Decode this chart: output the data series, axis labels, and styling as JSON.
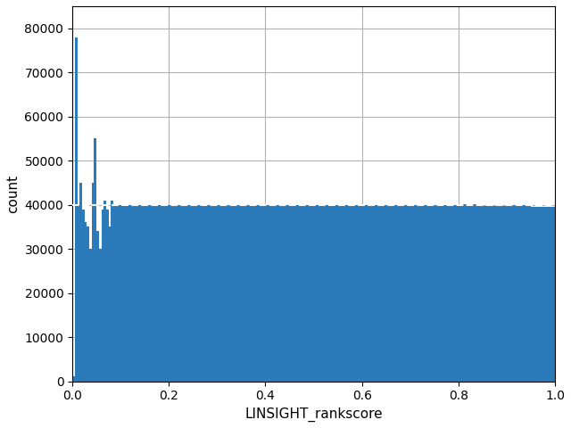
{
  "xlabel": "LINSIGHT_rankscore",
  "ylabel": "count",
  "xlim": [
    0.0,
    1.0
  ],
  "ylim": [
    0,
    85000
  ],
  "bar_color": "#2b7bba",
  "hline_color": "white",
  "hline_y": 40000,
  "hline_style": "--",
  "grid_color": "#b0b0b0",
  "figure_facecolor": "#ffffff",
  "axes_facecolor": "#ffffff",
  "figsize": [
    6.4,
    4.8
  ],
  "dpi": 100,
  "bin_edges": [
    0.0,
    0.005,
    0.01,
    0.015,
    0.02,
    0.025,
    0.03,
    0.035,
    0.04,
    0.045,
    0.05,
    0.055,
    0.06,
    0.065,
    0.07,
    0.075,
    0.08,
    0.085,
    0.09,
    0.095,
    0.1,
    0.15,
    0.2,
    0.25,
    0.3,
    0.35,
    0.4,
    0.45,
    0.5,
    0.55,
    0.6,
    0.65,
    0.7,
    0.75,
    0.8,
    0.85,
    0.9,
    0.95,
    1.0
  ],
  "bin_counts": [
    1200,
    78000,
    40000,
    45000,
    39000,
    36000,
    35000,
    30000,
    45000,
    55000,
    34000,
    30000,
    39000,
    41000,
    39000,
    35000,
    41000,
    40000,
    40000,
    40000,
    40000,
    40000,
    40000,
    40000,
    40000,
    40000,
    40000,
    40000,
    40000,
    40000,
    40000,
    40000,
    40000,
    40000,
    40200,
    39800,
    40000,
    39500
  ],
  "yticks": [
    0,
    10000,
    20000,
    30000,
    40000,
    50000,
    60000,
    70000,
    80000
  ],
  "xticks": [
    0.0,
    0.2,
    0.4,
    0.6,
    0.8,
    1.0
  ],
  "tick_labelsize": 10,
  "label_fontsize": 11,
  "hline_linewidth": 1.5,
  "grid_linewidth": 0.8
}
